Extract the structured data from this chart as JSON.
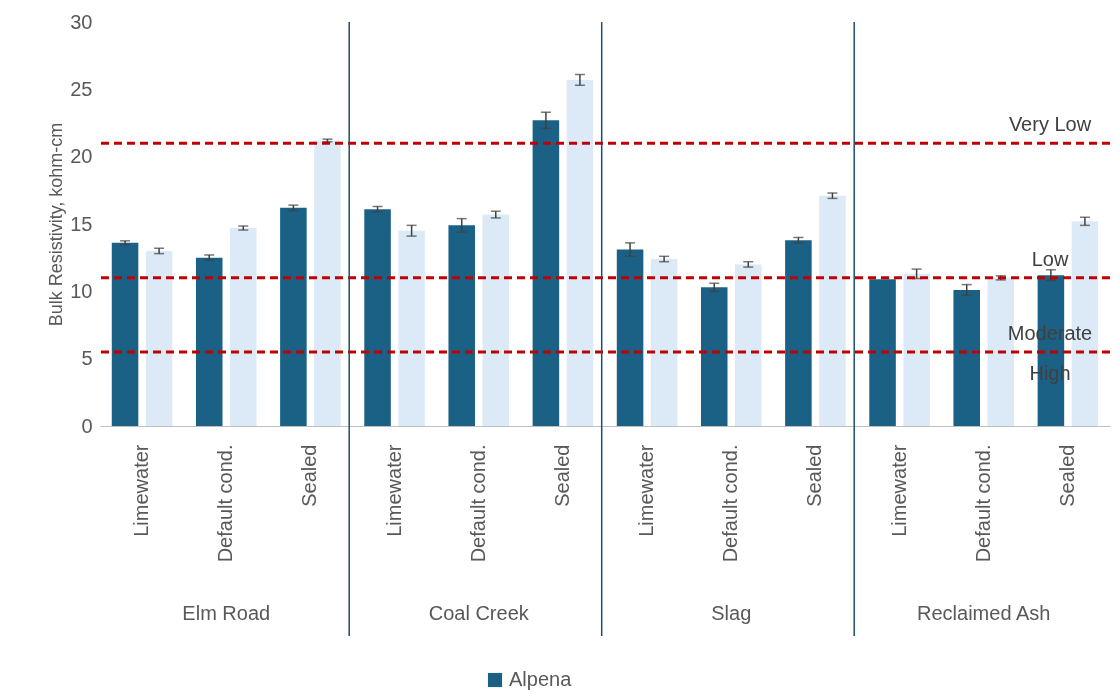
{
  "chart_data": {
    "type": "bar",
    "ylabel": "Bulk Resistivity, kohm-cm",
    "categories": [
      "Limewater",
      "Default cond.",
      "Sealed",
      "Limewater",
      "Default cond.",
      "Sealed",
      "Limewater",
      "Default cond.",
      "Sealed",
      "Limewater",
      "Default cond.",
      "Sealed"
    ],
    "series": [
      {
        "name": "Alpena",
        "color": "#1b6185",
        "values": [
          13.6,
          12.5,
          16.2,
          16.1,
          14.9,
          22.7,
          13.1,
          10.3,
          13.8,
          10.9,
          10.1,
          11.2
        ],
        "errors": [
          0.15,
          0.2,
          0.2,
          0.2,
          0.5,
          0.6,
          0.5,
          0.3,
          0.2,
          null,
          0.4,
          0.4
        ]
      },
      {
        "color": "#dceaf7",
        "values": [
          13.0,
          14.7,
          21.2,
          14.5,
          15.7,
          25.7,
          12.4,
          12.0,
          17.1,
          11.3,
          11.0,
          15.2
        ],
        "errors": [
          0.2,
          0.15,
          0.1,
          0.4,
          0.25,
          0.4,
          0.2,
          0.2,
          0.2,
          0.35,
          0.15,
          0.3
        ]
      }
    ],
    "ylim": [
      0,
      30
    ],
    "yticks": [
      0,
      5,
      10,
      15,
      20,
      25,
      30
    ],
    "grid": false,
    "legend": "bottom",
    "ref_lines": [
      {
        "axis": "y",
        "value": 21,
        "label": "Very Low",
        "color": "#c00000",
        "line_style": "dashed"
      },
      {
        "axis": "y",
        "value": 11,
        "label": "Low",
        "color": "#c00000",
        "line_style": "dashed"
      },
      {
        "axis": "y",
        "value": 5.5,
        "label": "Moderate",
        "color": "#c00000",
        "line_style": "dashed"
      }
    ],
    "annotations": [
      "Elm Road",
      "Coal Creek",
      "Slag",
      "Reclaimed Ash",
      "High"
    ]
  }
}
